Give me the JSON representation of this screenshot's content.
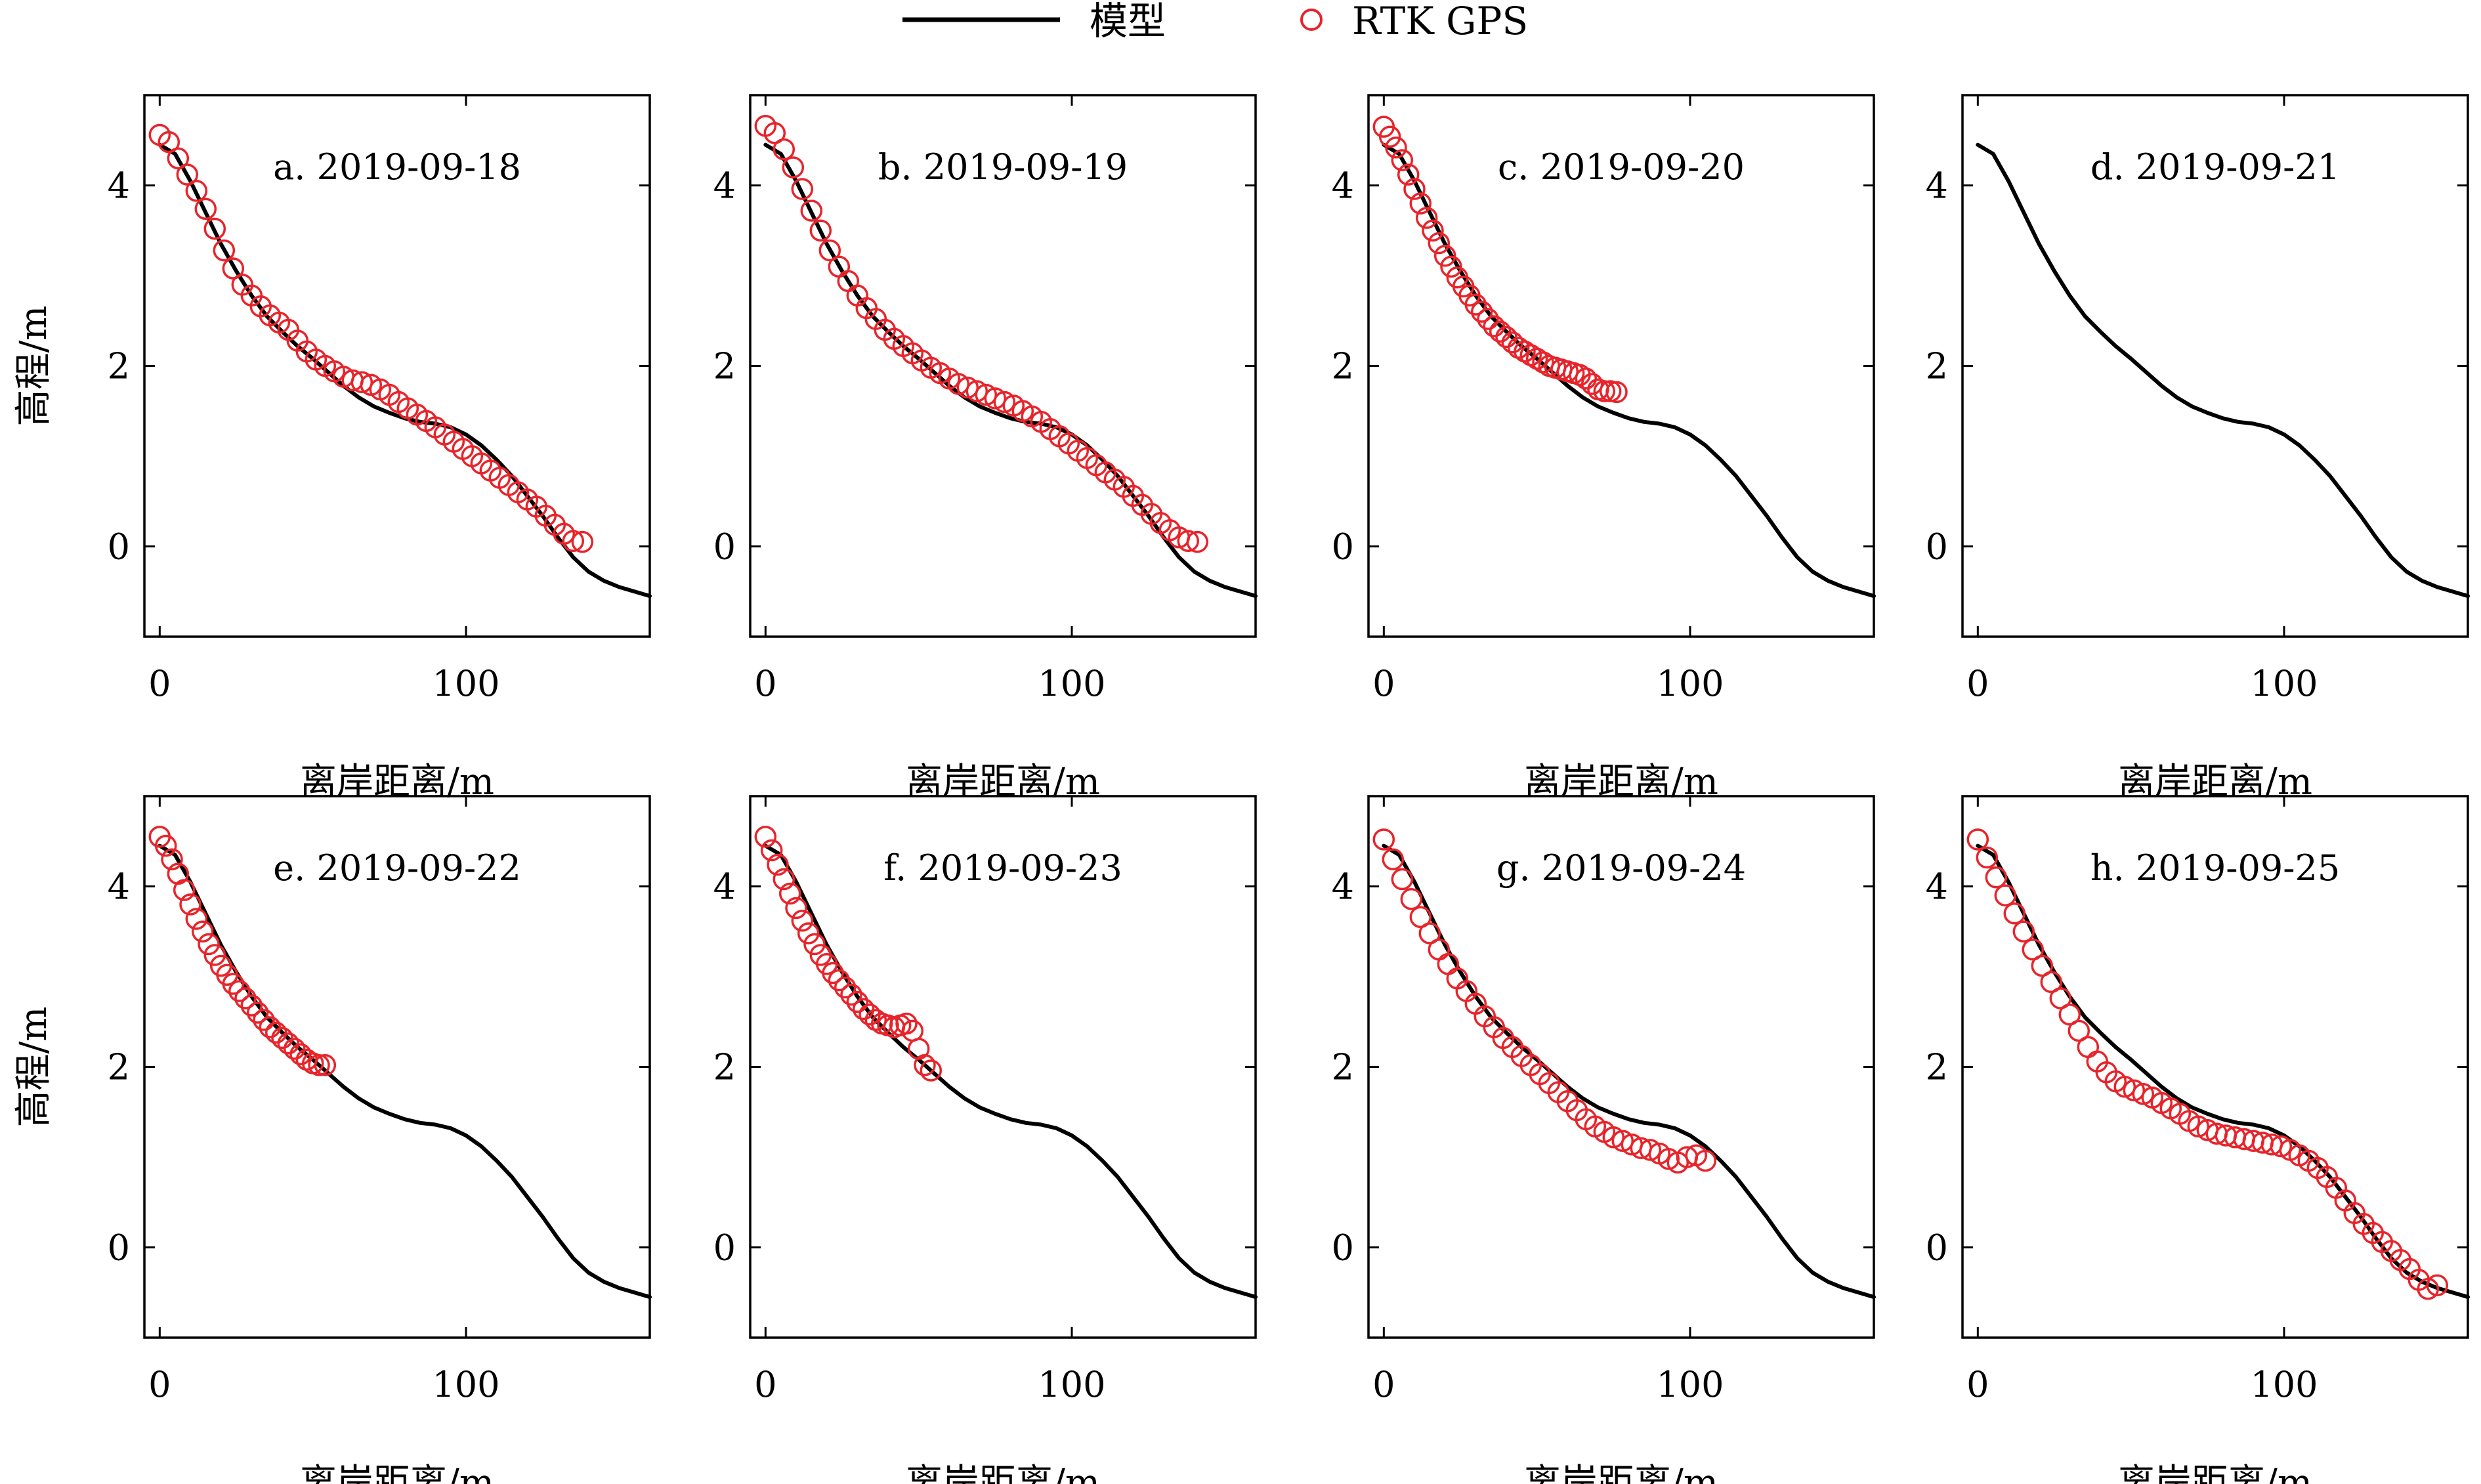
{
  "legend": {
    "model_label": "模型",
    "gps_label": "RTK GPS"
  },
  "colors": {
    "model": "#000000",
    "gps": "#e8242b"
  },
  "axes": {
    "xlabel": "离岸距离/m",
    "ylabel": "高程/m",
    "xlim": [
      -5,
      160
    ],
    "ylim": [
      -1,
      5
    ],
    "xticks": [
      0,
      100
    ],
    "yticks": [
      0,
      2,
      4
    ]
  },
  "chart_data": {
    "type": "line",
    "model_profile": {
      "x": [
        0,
        5,
        10,
        15,
        20,
        25,
        30,
        35,
        40,
        45,
        50,
        55,
        60,
        65,
        70,
        75,
        80,
        85,
        90,
        95,
        100,
        105,
        110,
        115,
        120,
        125,
        130,
        135,
        140,
        145,
        150,
        155,
        160
      ],
      "y": [
        4.45,
        4.35,
        4.05,
        3.7,
        3.35,
        3.05,
        2.78,
        2.55,
        2.38,
        2.22,
        2.08,
        1.93,
        1.78,
        1.65,
        1.55,
        1.48,
        1.42,
        1.38,
        1.36,
        1.32,
        1.24,
        1.12,
        0.96,
        0.78,
        0.56,
        0.34,
        0.1,
        -0.12,
        -0.28,
        -0.38,
        -0.45,
        -0.5,
        -0.55
      ]
    },
    "panels": [
      {
        "label": "a. 2019-09-18",
        "gps_x": [
          0,
          3,
          6,
          9,
          12,
          15,
          18,
          21,
          24,
          27,
          30,
          33,
          36,
          39,
          42,
          45,
          48,
          51,
          54,
          57,
          60,
          63,
          66,
          69,
          72,
          75,
          78,
          81,
          84,
          87,
          90,
          93,
          96,
          99,
          102,
          105,
          108,
          111,
          114,
          117,
          120,
          123,
          126,
          129,
          132,
          135,
          138
        ],
        "gps_y": [
          4.56,
          4.48,
          4.3,
          4.12,
          3.94,
          3.74,
          3.52,
          3.28,
          3.08,
          2.9,
          2.78,
          2.66,
          2.56,
          2.48,
          2.4,
          2.28,
          2.16,
          2.07,
          2.0,
          1.94,
          1.88,
          1.84,
          1.82,
          1.79,
          1.74,
          1.68,
          1.6,
          1.53,
          1.46,
          1.39,
          1.32,
          1.24,
          1.16,
          1.08,
          1.0,
          0.92,
          0.84,
          0.76,
          0.68,
          0.6,
          0.52,
          0.44,
          0.34,
          0.24,
          0.14,
          0.06,
          0.05
        ]
      },
      {
        "label": "b. 2019-09-19",
        "gps_x": [
          0,
          3,
          6,
          9,
          12,
          15,
          18,
          21,
          24,
          27,
          30,
          33,
          36,
          39,
          42,
          45,
          48,
          51,
          54,
          57,
          60,
          63,
          66,
          69,
          72,
          75,
          78,
          81,
          84,
          87,
          90,
          93,
          96,
          99,
          102,
          105,
          108,
          111,
          114,
          117,
          120,
          123,
          126,
          129,
          132,
          135,
          138,
          141
        ],
        "gps_y": [
          4.66,
          4.58,
          4.4,
          4.2,
          3.96,
          3.72,
          3.5,
          3.28,
          3.1,
          2.94,
          2.78,
          2.64,
          2.52,
          2.4,
          2.3,
          2.22,
          2.14,
          2.06,
          1.98,
          1.92,
          1.86,
          1.8,
          1.76,
          1.72,
          1.68,
          1.64,
          1.6,
          1.56,
          1.5,
          1.44,
          1.38,
          1.3,
          1.22,
          1.14,
          1.06,
          0.98,
          0.9,
          0.82,
          0.74,
          0.66,
          0.56,
          0.46,
          0.36,
          0.26,
          0.18,
          0.1,
          0.06,
          0.05
        ]
      },
      {
        "label": "c. 2019-09-20",
        "gps_x": [
          0,
          2,
          4,
          6,
          8,
          10,
          12,
          14,
          16,
          18,
          20,
          22,
          24,
          26,
          28,
          30,
          32,
          34,
          36,
          38,
          40,
          42,
          44,
          46,
          48,
          50,
          52,
          54,
          56,
          58,
          60,
          62,
          64,
          66,
          68,
          70,
          72,
          74,
          76
        ],
        "gps_y": [
          4.65,
          4.54,
          4.42,
          4.28,
          4.12,
          3.96,
          3.8,
          3.64,
          3.5,
          3.36,
          3.22,
          3.1,
          2.98,
          2.88,
          2.78,
          2.68,
          2.6,
          2.52,
          2.44,
          2.38,
          2.32,
          2.26,
          2.2,
          2.16,
          2.12,
          2.08,
          2.04,
          2.0,
          1.98,
          1.96,
          1.94,
          1.92,
          1.9,
          1.86,
          1.8,
          1.74,
          1.72,
          1.72,
          1.71
        ]
      },
      {
        "label": "d. 2019-09-21",
        "gps_x": [],
        "gps_y": []
      },
      {
        "label": "e. 2019-09-22",
        "gps_x": [
          0,
          2,
          4,
          6,
          8,
          10,
          12,
          14,
          16,
          18,
          20,
          22,
          24,
          26,
          28,
          30,
          32,
          34,
          36,
          38,
          40,
          42,
          44,
          46,
          48,
          50,
          52,
          54
        ],
        "gps_y": [
          4.55,
          4.45,
          4.3,
          4.14,
          3.96,
          3.8,
          3.64,
          3.5,
          3.36,
          3.24,
          3.12,
          3.02,
          2.92,
          2.84,
          2.76,
          2.68,
          2.6,
          2.52,
          2.44,
          2.38,
          2.32,
          2.26,
          2.2,
          2.14,
          2.08,
          2.04,
          2.02,
          2.02
        ]
      },
      {
        "label": "f. 2019-09-23",
        "gps_x": [
          0,
          2,
          4,
          6,
          8,
          10,
          12,
          14,
          16,
          18,
          20,
          22,
          24,
          26,
          28,
          30,
          32,
          34,
          36,
          38,
          40,
          42,
          44,
          46,
          48,
          50,
          52,
          54
        ],
        "gps_y": [
          4.55,
          4.4,
          4.24,
          4.08,
          3.92,
          3.76,
          3.62,
          3.48,
          3.36,
          3.24,
          3.14,
          3.04,
          2.96,
          2.88,
          2.8,
          2.72,
          2.64,
          2.58,
          2.52,
          2.48,
          2.46,
          2.44,
          2.46,
          2.48,
          2.4,
          2.2,
          2.02,
          1.96
        ]
      },
      {
        "label": "g. 2019-09-24",
        "gps_x": [
          0,
          3,
          6,
          9,
          12,
          15,
          18,
          21,
          24,
          27,
          30,
          33,
          36,
          39,
          42,
          45,
          48,
          51,
          54,
          57,
          60,
          63,
          66,
          69,
          72,
          75,
          78,
          81,
          84,
          87,
          90,
          93,
          96,
          99,
          102,
          105
        ],
        "gps_y": [
          4.52,
          4.3,
          4.08,
          3.86,
          3.66,
          3.48,
          3.3,
          3.14,
          2.98,
          2.84,
          2.7,
          2.56,
          2.44,
          2.32,
          2.22,
          2.12,
          2.02,
          1.92,
          1.82,
          1.72,
          1.62,
          1.52,
          1.42,
          1.34,
          1.28,
          1.22,
          1.18,
          1.14,
          1.1,
          1.08,
          1.04,
          0.98,
          0.94,
          1.0,
          1.02,
          0.96
        ]
      },
      {
        "label": "h. 2019-09-25",
        "gps_x": [
          0,
          3,
          6,
          9,
          12,
          15,
          18,
          21,
          24,
          27,
          30,
          33,
          36,
          39,
          42,
          45,
          48,
          51,
          54,
          57,
          60,
          63,
          66,
          69,
          72,
          75,
          78,
          81,
          84,
          87,
          90,
          93,
          96,
          99,
          102,
          105,
          108,
          111,
          114,
          117,
          120,
          123,
          126,
          129,
          132,
          135,
          138,
          141,
          144,
          147,
          150
        ],
        "gps_y": [
          4.52,
          4.32,
          4.1,
          3.9,
          3.7,
          3.5,
          3.3,
          3.12,
          2.94,
          2.76,
          2.58,
          2.4,
          2.22,
          2.06,
          1.94,
          1.84,
          1.78,
          1.74,
          1.7,
          1.66,
          1.6,
          1.54,
          1.48,
          1.4,
          1.34,
          1.3,
          1.26,
          1.24,
          1.22,
          1.2,
          1.18,
          1.16,
          1.14,
          1.12,
          1.08,
          1.02,
          0.96,
          0.88,
          0.78,
          0.66,
          0.52,
          0.38,
          0.26,
          0.16,
          0.06,
          -0.04,
          -0.14,
          -0.24,
          -0.36,
          -0.46,
          -0.42
        ]
      }
    ]
  }
}
